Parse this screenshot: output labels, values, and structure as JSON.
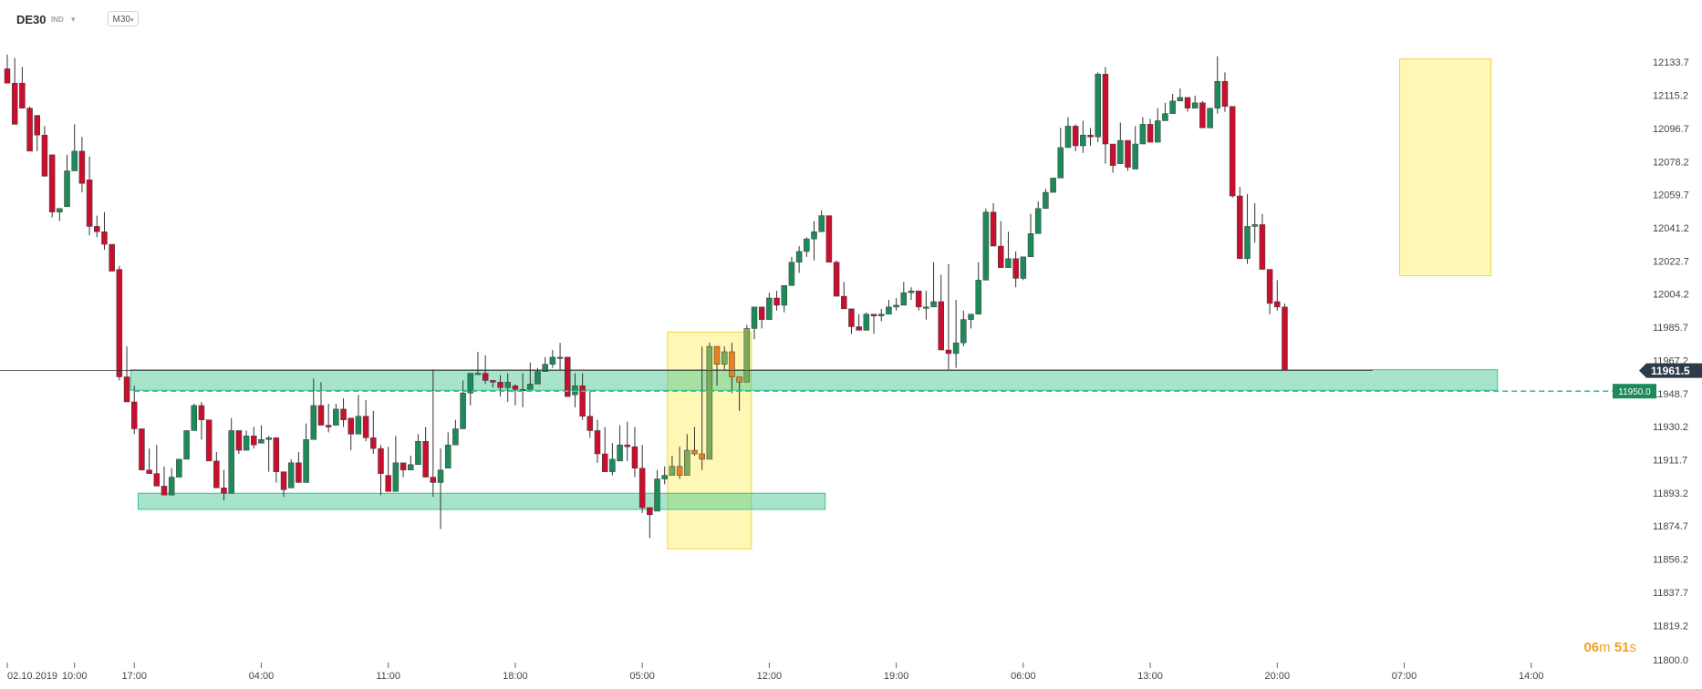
{
  "header": {
    "symbol": "DE30",
    "instrument_type": "IND",
    "timeframe": "M30"
  },
  "timer": {
    "minutes": "06",
    "minutes_unit": "m",
    "seconds": "51",
    "seconds_unit": "s"
  },
  "colors": {
    "bull": "#1e8a5a",
    "bear": "#c8102e",
    "highlight_bear": "#e8821e",
    "highlight_bull": "#79ad55",
    "zone": "#3cc48c",
    "highlight_box": "#fff07a",
    "price_tag": "#1e8a5a",
    "current_tag": "#2d3b48"
  },
  "chart_data": {
    "type": "candlestick",
    "title": "",
    "ylim": [
      11800.0,
      12145.0
    ],
    "y_ticks": [
      "12133.7",
      "12115.2",
      "12096.7",
      "12078.2",
      "12059.7",
      "12041.2",
      "12022.7",
      "12004.2",
      "11985.7",
      "11967.2",
      "11948.7",
      "11930.2",
      "11911.7",
      "11893.2",
      "11874.7",
      "11856.2",
      "11837.7",
      "11819.2",
      "11800.0"
    ],
    "x_tick_labels": [
      {
        "label": "02.10.2019",
        "bar": 0
      },
      {
        "label": "10:00",
        "bar": 9
      },
      {
        "label": "17:00",
        "bar": 17
      },
      {
        "label": "04:00",
        "bar": 34
      },
      {
        "label": "11:00",
        "bar": 51
      },
      {
        "label": "18:00",
        "bar": 68
      },
      {
        "label": "05:00",
        "bar": 85
      },
      {
        "label": "12:00",
        "bar": 102
      },
      {
        "label": "19:00",
        "bar": 119
      },
      {
        "label": "06:00",
        "bar": 136
      },
      {
        "label": "13:00",
        "bar": 153
      },
      {
        "label": "20:00",
        "bar": 170
      },
      {
        "label": "07:00",
        "bar": 187
      },
      {
        "label": "14:00",
        "bar": 204
      }
    ],
    "current_price": 11961.5,
    "current_price_label": "11961.5",
    "level_line": 11950.0,
    "level_line_label": "11950.0",
    "zones": [
      {
        "from_bar": 17,
        "to_bar": 199,
        "low": 11950.5,
        "high": 11962.0
      },
      {
        "from_bar": 18,
        "to_bar": 109,
        "low": 11884.0,
        "high": 11893.0
      }
    ],
    "highlight_boxes": [
      {
        "from_bar": 89,
        "to_bar": 99,
        "low": 11862.0,
        "high": 11983.0
      },
      {
        "from_bar": 187,
        "to_bar": 198,
        "low": 12014.5,
        "high": 12135.5
      }
    ],
    "candles": [
      [
        12130,
        12138,
        12123,
        12122
      ],
      [
        12122,
        12136,
        12121,
        12099
      ],
      [
        12122,
        12131,
        12110,
        12108
      ],
      [
        12108,
        12109,
        12090,
        12084
      ],
      [
        12104,
        12104,
        12084,
        12093
      ],
      [
        12093,
        12098,
        12081,
        12070
      ],
      [
        12082,
        12082,
        12047,
        12050
      ],
      [
        12050,
        12050,
        12045,
        12052
      ],
      [
        12053,
        12082,
        12060,
        12073
      ],
      [
        12073,
        12099,
        12087,
        12084
      ],
      [
        12084,
        12092,
        12061,
        12066
      ],
      [
        12068,
        12081,
        12037,
        12042
      ],
      [
        12042,
        12048,
        12036,
        12039
      ],
      [
        12039,
        12050,
        12029,
        12032
      ],
      [
        12032,
        12031,
        12019,
        12017
      ],
      [
        12018,
        12020,
        11956,
        11958
      ],
      [
        11958,
        11975,
        11946,
        11944
      ],
      [
        11944,
        11953,
        11926,
        11929
      ],
      [
        11929,
        11929,
        11916,
        11906
      ],
      [
        11906,
        11918,
        11911,
        11904
      ],
      [
        11904,
        11920,
        11902,
        11897
      ],
      [
        11897,
        11908,
        11895,
        11892
      ],
      [
        11892,
        11907,
        11894,
        11902
      ],
      [
        11902,
        11911,
        11906,
        11912
      ],
      [
        11912,
        11927,
        11924,
        11928
      ],
      [
        11928,
        11943,
        11941,
        11942
      ],
      [
        11942,
        11944,
        11923,
        11934
      ],
      [
        11934,
        11930,
        11912,
        11911
      ],
      [
        11911,
        11916,
        11904,
        11896
      ],
      [
        11896,
        11906,
        11889,
        11893
      ],
      [
        11893,
        11935,
        11927,
        11928
      ],
      [
        11928,
        11927,
        11915,
        11917
      ],
      [
        11917,
        11928,
        11923,
        11925
      ],
      [
        11925,
        11930,
        11918,
        11920
      ],
      [
        11921,
        11931,
        11923,
        11923
      ],
      [
        11923,
        11925,
        11905,
        11924
      ],
      [
        11924,
        11907,
        11899,
        11905
      ],
      [
        11905,
        11901,
        11891,
        11895
      ],
      [
        11896,
        11912,
        11903,
        11910
      ],
      [
        11910,
        11916,
        11904,
        11899
      ],
      [
        11899,
        11932,
        11922,
        11923
      ],
      [
        11923,
        11957,
        11940,
        11942
      ],
      [
        11942,
        11955,
        11932,
        11931
      ],
      [
        11931,
        11943,
        11927,
        11930
      ],
      [
        11931,
        11943,
        11937,
        11940
      ],
      [
        11940,
        11946,
        11930,
        11934
      ],
      [
        11935,
        11925,
        11917,
        11926
      ],
      [
        11926,
        11948,
        11936,
        11936
      ],
      [
        11936,
        11945,
        11922,
        11924
      ],
      [
        11924,
        11939,
        11915,
        11918
      ],
      [
        11918,
        11920,
        11892,
        11904
      ],
      [
        11903,
        11919,
        11895,
        11894
      ],
      [
        11894,
        11925,
        11905,
        11910
      ],
      [
        11910,
        11908,
        11902,
        11906
      ],
      [
        11906,
        11914,
        11910,
        11909
      ],
      [
        11909,
        11926,
        11915,
        11922
      ],
      [
        11922,
        11930,
        11915,
        11902
      ],
      [
        11902,
        11962,
        11891,
        11899
      ],
      [
        11899,
        11918,
        11873,
        11906
      ],
      [
        11907,
        11927,
        11913,
        11920
      ],
      [
        11920,
        11934,
        11930,
        11929
      ],
      [
        11929,
        11956,
        11943,
        11949
      ],
      [
        11949,
        11952,
        11942,
        11960
      ],
      [
        11960,
        11972,
        11961,
        11960
      ],
      [
        11960,
        11970,
        11954,
        11956
      ],
      [
        11956,
        11942,
        11952,
        11955
      ],
      [
        11955,
        11959,
        11947,
        11952
      ],
      [
        11952,
        11960,
        11944,
        11955
      ],
      [
        11953,
        11954,
        11942,
        11951
      ],
      [
        11951,
        11960,
        11941,
        11951
      ],
      [
        11951,
        11966,
        11954,
        11954
      ],
      [
        11954,
        11963,
        11959,
        11961
      ],
      [
        11961,
        11969,
        11961,
        11965
      ],
      [
        11965,
        11973,
        11963,
        11969
      ],
      [
        11969,
        11977,
        11962,
        11969
      ],
      [
        11969,
        11968,
        11948,
        11947
      ],
      [
        11948,
        11960,
        11941,
        11953
      ],
      [
        11953,
        11960,
        11934,
        11936
      ],
      [
        11936,
        11950,
        11924,
        11928
      ],
      [
        11928,
        11934,
        11910,
        11915
      ],
      [
        11915,
        11930,
        11907,
        11905
      ],
      [
        11905,
        11921,
        11903,
        11912
      ],
      [
        11911,
        11931,
        11915,
        11920
      ],
      [
        11920,
        11933,
        11911,
        11919
      ],
      [
        11919,
        11930,
        11902,
        11907
      ],
      [
        11907,
        11920,
        11882,
        11885
      ],
      [
        11885,
        11881,
        11868,
        11881
      ],
      [
        11883,
        11906,
        11898,
        11901
      ],
      [
        11901,
        11908,
        11898,
        11903
      ],
      [
        11903,
        11914,
        11905,
        11908
      ],
      [
        11908,
        11919,
        11901,
        11903
      ],
      [
        11903,
        11926,
        11908,
        11917
      ],
      [
        11917,
        11930,
        11914,
        11915
      ],
      [
        11915,
        11975,
        11906,
        11912
      ],
      [
        11912,
        11977,
        11938,
        11975
      ],
      [
        11975,
        11973,
        11953,
        11965
      ],
      [
        11965,
        11975,
        11962,
        11972
      ],
      [
        11972,
        11977,
        11949,
        11958
      ],
      [
        11958,
        11953,
        11939,
        11955
      ],
      [
        11955,
        11987,
        11962,
        11985
      ],
      [
        11985,
        11997,
        11979,
        11997
      ],
      [
        11997,
        11996,
        11985,
        11990
      ],
      [
        11990,
        12005,
        11994,
        12002
      ],
      [
        12002,
        12006,
        11995,
        11998
      ],
      [
        11998,
        12007,
        11994,
        12009
      ],
      [
        12009,
        12025,
        12013,
        12022
      ],
      [
        12022,
        12031,
        12016,
        12028
      ],
      [
        12028,
        12036,
        12025,
        12035
      ],
      [
        12035,
        12045,
        12023,
        12039
      ],
      [
        12039,
        12051,
        12044,
        12048
      ],
      [
        12048,
        12044,
        12033,
        12022
      ],
      [
        12022,
        12023,
        12004,
        12003
      ],
      [
        12003,
        12011,
        11997,
        11996
      ],
      [
        11996,
        11993,
        11982,
        11986
      ],
      [
        11986,
        11993,
        11986,
        11984
      ],
      [
        11984,
        11994,
        11986,
        11993
      ],
      [
        11993,
        11988,
        11982,
        11992
      ],
      [
        11992,
        11996,
        11989,
        11993
      ],
      [
        11993,
        12001,
        11994,
        11997
      ],
      [
        11997,
        12002,
        11995,
        11998
      ],
      [
        11998,
        12011,
        12003,
        12005
      ],
      [
        12005,
        12008,
        12001,
        12006
      ],
      [
        12006,
        12002,
        11995,
        11997
      ],
      [
        11997,
        12006,
        11990,
        11997
      ],
      [
        11997,
        12022,
        12005,
        12000
      ],
      [
        12000,
        12015,
        11987,
        11973
      ],
      [
        11973,
        12021,
        11962,
        11971
      ],
      [
        11971,
        12001,
        11963,
        11977
      ],
      [
        11977,
        11995,
        11975,
        11990
      ],
      [
        11990,
        11993,
        11985,
        11993
      ],
      [
        11993,
        12022,
        12001,
        12012
      ],
      [
        12012,
        12052,
        12043,
        12050
      ],
      [
        12050,
        12055,
        12038,
        12031
      ],
      [
        12031,
        12045,
        12020,
        12019
      ],
      [
        12019,
        12039,
        12027,
        12024
      ],
      [
        12024,
        12028,
        12008,
        12013
      ],
      [
        12013,
        12022,
        12012,
        12025
      ],
      [
        12025,
        12049,
        12033,
        12038
      ],
      [
        12038,
        12056,
        12045,
        12052
      ],
      [
        12052,
        12063,
        12057,
        12061
      ],
      [
        12061,
        12069,
        12075,
        12069
      ],
      [
        12069,
        12097,
        12078,
        12086
      ],
      [
        12086,
        12103,
        12089,
        12098
      ],
      [
        12098,
        12099,
        12084,
        12087
      ],
      [
        12087,
        12101,
        12083,
        12093
      ],
      [
        12093,
        12097,
        12087,
        12092
      ],
      [
        12092,
        12128,
        12089,
        12127
      ],
      [
        12127,
        12131,
        12077,
        12088
      ],
      [
        12088,
        12085,
        12072,
        12076
      ],
      [
        12077,
        12100,
        12085,
        12090
      ],
      [
        12090,
        12088,
        12073,
        12075
      ],
      [
        12074,
        12098,
        12081,
        12088
      ],
      [
        12088,
        12103,
        12089,
        12099
      ],
      [
        12099,
        12102,
        12092,
        12089
      ],
      [
        12089,
        12108,
        12095,
        12101
      ],
      [
        12101,
        12111,
        12102,
        12105
      ],
      [
        12105,
        12116,
        12107,
        12112
      ],
      [
        12112,
        12119,
        12113,
        12114
      ],
      [
        12114,
        12108,
        12106,
        12108
      ],
      [
        12108,
        12115,
        12110,
        12111
      ],
      [
        12111,
        12112,
        12097,
        12097
      ],
      [
        12097,
        12100,
        12098,
        12108
      ],
      [
        12108,
        12137,
        12105,
        12123
      ],
      [
        12123,
        12128,
        12106,
        12109
      ],
      [
        12109,
        12104,
        12058,
        12059
      ],
      [
        12059,
        12064,
        12025,
        12024
      ],
      [
        12024,
        12060,
        12021,
        12042
      ],
      [
        12042,
        12055,
        12033,
        12043
      ],
      [
        12043,
        12049,
        12018,
        12018
      ],
      [
        12018,
        12008,
        11993,
        11999
      ],
      [
        12000,
        12012,
        11995,
        11997
      ],
      [
        11997,
        11999,
        11962,
        11962
      ]
    ]
  }
}
